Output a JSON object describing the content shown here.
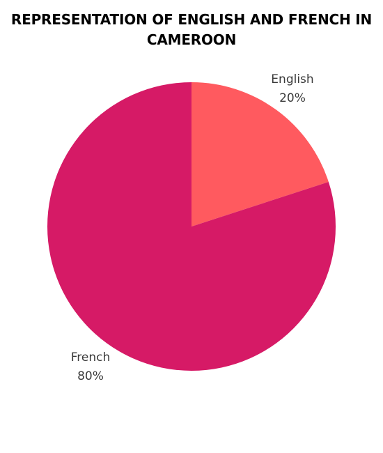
{
  "chart_data": {
    "type": "pie",
    "title": "REPRESENTATION OF ENGLISH AND FRENCH IN CAMEROON",
    "slices": [
      {
        "label": "English",
        "value": 20,
        "value_label": "20%",
        "color": "#ff5a5f"
      },
      {
        "label": "French",
        "value": 80,
        "value_label": "80%",
        "color": "#d61a66"
      }
    ],
    "start": "12 o'clock",
    "direction": "clockwise",
    "legend": "none"
  }
}
